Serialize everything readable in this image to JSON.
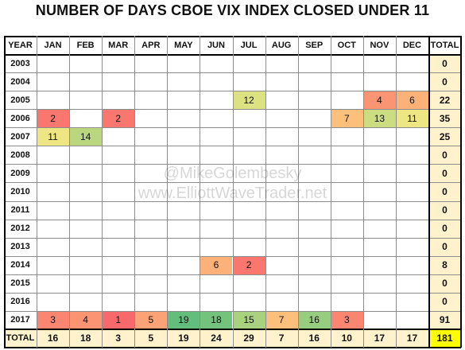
{
  "title": "NUMBER OF DAYS CBOE VIX INDEX CLOSED UNDER 11",
  "watermarks": [
    "@MikeGolembesky",
    "www.ElliottWaveTrader.net"
  ],
  "chart_data": {
    "type": "table",
    "corner_label": "YEAR",
    "columns": [
      "JAN",
      "FEB",
      "MAR",
      "APR",
      "MAY",
      "JUN",
      "JUL",
      "AUG",
      "SEP",
      "OCT",
      "NOV",
      "DEC"
    ],
    "total_label": "TOTAL",
    "rows": [
      {
        "year": "2003",
        "values": [
          null,
          null,
          null,
          null,
          null,
          null,
          null,
          null,
          null,
          null,
          null,
          null
        ],
        "total": 0
      },
      {
        "year": "2004",
        "values": [
          null,
          null,
          null,
          null,
          null,
          null,
          null,
          null,
          null,
          null,
          null,
          null
        ],
        "total": 0
      },
      {
        "year": "2005",
        "values": [
          null,
          null,
          null,
          null,
          null,
          null,
          12,
          null,
          null,
          null,
          4,
          6
        ],
        "total": 22
      },
      {
        "year": "2006",
        "values": [
          2,
          null,
          2,
          null,
          null,
          null,
          null,
          null,
          null,
          7,
          13,
          11
        ],
        "total": 35
      },
      {
        "year": "2007",
        "values": [
          11,
          14,
          null,
          null,
          null,
          null,
          null,
          null,
          null,
          null,
          null,
          null
        ],
        "total": 25
      },
      {
        "year": "2008",
        "values": [
          null,
          null,
          null,
          null,
          null,
          null,
          null,
          null,
          null,
          null,
          null,
          null
        ],
        "total": 0
      },
      {
        "year": "2009",
        "values": [
          null,
          null,
          null,
          null,
          null,
          null,
          null,
          null,
          null,
          null,
          null,
          null
        ],
        "total": 0
      },
      {
        "year": "2010",
        "values": [
          null,
          null,
          null,
          null,
          null,
          null,
          null,
          null,
          null,
          null,
          null,
          null
        ],
        "total": 0
      },
      {
        "year": "2011",
        "values": [
          null,
          null,
          null,
          null,
          null,
          null,
          null,
          null,
          null,
          null,
          null,
          null
        ],
        "total": 0
      },
      {
        "year": "2012",
        "values": [
          null,
          null,
          null,
          null,
          null,
          null,
          null,
          null,
          null,
          null,
          null,
          null
        ],
        "total": 0
      },
      {
        "year": "2013",
        "values": [
          null,
          null,
          null,
          null,
          null,
          null,
          null,
          null,
          null,
          null,
          null,
          null
        ],
        "total": 0
      },
      {
        "year": "2014",
        "values": [
          null,
          null,
          null,
          null,
          null,
          6,
          2,
          null,
          null,
          null,
          null,
          null
        ],
        "total": 8
      },
      {
        "year": "2015",
        "values": [
          null,
          null,
          null,
          null,
          null,
          null,
          null,
          null,
          null,
          null,
          null,
          null
        ],
        "total": 0
      },
      {
        "year": "2016",
        "values": [
          null,
          null,
          null,
          null,
          null,
          null,
          null,
          null,
          null,
          null,
          null,
          null
        ],
        "total": 0
      },
      {
        "year": "2017",
        "values": [
          3,
          4,
          1,
          5,
          19,
          18,
          15,
          7,
          16,
          3,
          null,
          null
        ],
        "total": 91
      }
    ],
    "column_totals": [
      16,
      18,
      3,
      5,
      19,
      24,
      29,
      7,
      16,
      10,
      17,
      17
    ],
    "grand_total": 181,
    "colors": {
      "scale_low": "#f8696b",
      "scale_mid": "#ffeb84",
      "scale_high": "#63be7b",
      "total_col_fill": "#fff2cc",
      "grand_total_fill": "#ffff00"
    }
  }
}
